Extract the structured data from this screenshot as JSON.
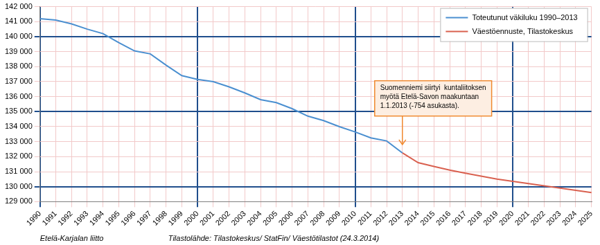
{
  "chart_data": {
    "type": "line",
    "categories": [
      "1990",
      "1991",
      "1992",
      "1993",
      "1994",
      "1995",
      "1996",
      "1997",
      "1998",
      "1999",
      "2000",
      "2001",
      "2002",
      "2003",
      "2004",
      "2005",
      "2006",
      "2007",
      "2008",
      "2009",
      "2010",
      "2011",
      "2012",
      "2013",
      "2014",
      "2015",
      "2016",
      "2017",
      "2018",
      "2019",
      "2020",
      "2021",
      "2022",
      "2023",
      "2024",
      "2025"
    ],
    "series": [
      {
        "name": "Toteutunut väkiluku 1990–2013",
        "color": "#4a8fd0",
        "marker": "none",
        "line_style": "solid",
        "values": [
          141200,
          141100,
          140850,
          140500,
          140200,
          139600,
          139050,
          138850,
          138100,
          137400,
          137150,
          137000,
          136650,
          136250,
          135800,
          135600,
          135200,
          134700,
          134400,
          134000,
          133650,
          133250,
          133050,
          132250,
          null,
          null,
          null,
          null,
          null,
          null,
          null,
          null,
          null,
          null,
          null,
          null
        ]
      },
      {
        "name": "Väestöennuste, Tilastokeskus",
        "color": "#d9604f",
        "marker": "none",
        "line_style": "solid",
        "values": [
          null,
          null,
          null,
          null,
          null,
          null,
          null,
          null,
          null,
          null,
          null,
          null,
          null,
          null,
          null,
          null,
          null,
          null,
          null,
          null,
          null,
          null,
          null,
          132250,
          131600,
          131350,
          131100,
          130900,
          130700,
          130500,
          130350,
          130200,
          130050,
          129900,
          129750,
          129600
        ]
      }
    ],
    "ylim": [
      129000,
      142000
    ],
    "yticks": [
      {
        "value": 129000,
        "label": "129 000"
      },
      {
        "value": 130000,
        "label": "130 000"
      },
      {
        "value": 131000,
        "label": "131 000"
      },
      {
        "value": 132000,
        "label": "132 000"
      },
      {
        "value": 133000,
        "label": "133 000"
      },
      {
        "value": 134000,
        "label": "134 000"
      },
      {
        "value": 135000,
        "label": "135 000"
      },
      {
        "value": 136000,
        "label": "136 000"
      },
      {
        "value": 137000,
        "label": "137 000"
      },
      {
        "value": 138000,
        "label": "138 000"
      },
      {
        "value": 139000,
        "label": "139 000"
      },
      {
        "value": 140000,
        "label": "140 000"
      },
      {
        "value": 141000,
        "label": "141 000"
      },
      {
        "value": 142000,
        "label": "142 000"
      }
    ],
    "grid": true,
    "legend": "upper right",
    "annotation": {
      "x": "2013",
      "text": [
        "Suomenniemi siirtyi  kuntaliitoksen",
        "myötä Etelä-Savon maakuntaan",
        "1.1.2013 (-754 asukasta)."
      ]
    },
    "credit": "Etelä-Karjalan liitto",
    "source": "Tilastolähde: Tilastokeskus/ StatFin/ Väestötilastot (24.3.2014)"
  }
}
